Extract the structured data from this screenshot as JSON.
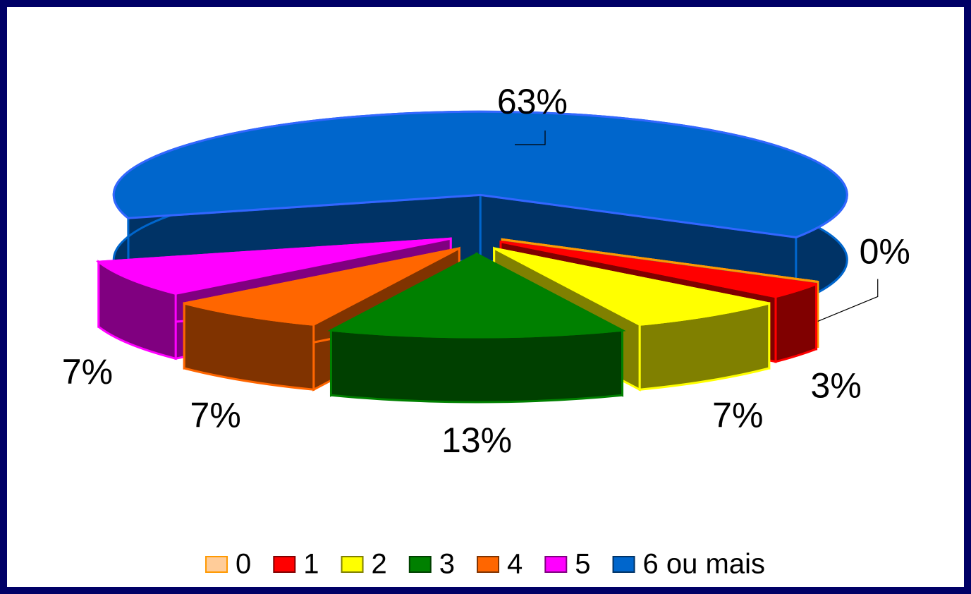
{
  "chart_data": {
    "type": "pie3d",
    "categories": [
      "0",
      "1",
      "2",
      "3",
      "4",
      "5",
      "6 ou mais"
    ],
    "values": [
      0,
      3,
      7,
      13,
      7,
      7,
      63
    ],
    "value_labels": [
      "0%",
      "3%",
      "7%",
      "13%",
      "7%",
      "7%",
      "63%"
    ],
    "colors": [
      "#ffcc99",
      "#ff0000",
      "#ffff00",
      "#008000",
      "#ff6600",
      "#ff00ff",
      "#0066cc"
    ],
    "legend": "bottom"
  }
}
